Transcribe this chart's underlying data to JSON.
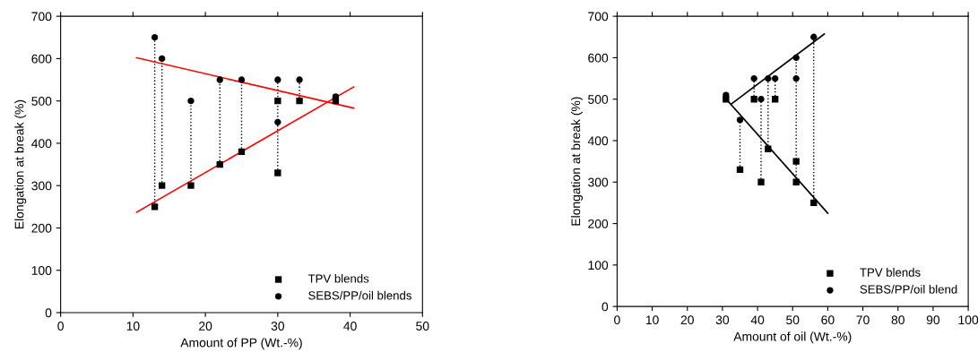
{
  "chart_data": [
    {
      "type": "scatter",
      "xlabel": "Amount of PP (Wt.-%)",
      "ylabel": "Elongation at break (%)",
      "xlim": [
        0,
        50
      ],
      "xticks": [
        0,
        10,
        20,
        30,
        40,
        50
      ],
      "ylim": [
        0,
        700
      ],
      "yticks": [
        0,
        100,
        200,
        300,
        400,
        500,
        600,
        700
      ],
      "grid": false,
      "legend": "bottom right",
      "series": [
        {
          "name": "TPV blends",
          "marker": "square",
          "color": "#000000",
          "x": [
            13,
            14,
            18,
            22,
            25,
            30,
            30,
            33,
            38
          ],
          "values": [
            250,
            300,
            300,
            350,
            380,
            500,
            330,
            500,
            500
          ]
        },
        {
          "name": "SEBS/PP/oil blends",
          "marker": "circle",
          "color": "#000000",
          "x": [
            13,
            14,
            18,
            22,
            25,
            30,
            30,
            33,
            38
          ],
          "values": [
            650,
            600,
            500,
            550,
            550,
            550,
            450,
            550,
            510
          ]
        },
        {
          "type": "line",
          "line_style": "dotted",
          "color": "#000000",
          "x": [
            13,
            13,
            null,
            14,
            14,
            null,
            18,
            18,
            null,
            22,
            22,
            null,
            25,
            25,
            null,
            30,
            30,
            null,
            33,
            33
          ],
          "values": [
            250,
            650,
            null,
            300,
            600,
            null,
            300,
            500,
            null,
            350,
            550,
            null,
            380,
            550,
            null,
            330,
            550,
            null,
            500,
            550
          ]
        },
        {
          "type": "line",
          "line_style": "solid",
          "color": "#ff0000",
          "x": [
            10.5,
            40.5
          ],
          "values": [
            237,
            533
          ]
        },
        {
          "type": "line",
          "line_style": "solid",
          "color": "#ff0000",
          "x": [
            10.5,
            40.5
          ],
          "values": [
            602,
            483
          ]
        }
      ]
    },
    {
      "type": "scatter",
      "xlabel": "Amount of oil (Wt.-%)",
      "ylabel": "Elongation at break (%)",
      "xlim": [
        0,
        100
      ],
      "xticks": [
        0,
        10,
        20,
        30,
        40,
        50,
        60,
        70,
        80,
        90,
        100
      ],
      "ylim": [
        0,
        700
      ],
      "yticks": [
        0,
        100,
        200,
        300,
        400,
        500,
        600,
        700
      ],
      "grid": false,
      "legend": "bottom right",
      "series": [
        {
          "name": "TPV blends",
          "marker": "square",
          "color": "#000000",
          "x": [
            31,
            35,
            39,
            41,
            43,
            45,
            51,
            51,
            56
          ],
          "values": [
            500,
            330,
            500,
            300,
            380,
            500,
            350,
            300,
            250
          ]
        },
        {
          "name": "SEBS/PP/oil blend",
          "marker": "circle",
          "color": "#000000",
          "x": [
            31,
            35,
            39,
            41,
            43,
            45,
            51,
            51,
            56
          ],
          "values": [
            510,
            450,
            550,
            500,
            550,
            550,
            600,
            550,
            650
          ]
        },
        {
          "type": "line",
          "line_style": "dotted",
          "color": "#000000",
          "x": [
            35,
            35,
            null,
            39,
            39,
            null,
            41,
            41,
            null,
            43,
            43,
            null,
            45,
            45,
            null,
            51,
            51,
            null,
            56,
            56
          ],
          "values": [
            330,
            450,
            null,
            500,
            550,
            null,
            300,
            500,
            null,
            380,
            550,
            null,
            500,
            550,
            null,
            300,
            600,
            null,
            250,
            650
          ]
        },
        {
          "type": "line",
          "line_style": "solid",
          "color": "#000000",
          "x": [
            32.6,
            59
          ],
          "values": [
            489,
            657
          ]
        },
        {
          "type": "line",
          "line_style": "solid",
          "color": "#000000",
          "x": [
            31.5,
            60
          ],
          "values": [
            496,
            225
          ]
        }
      ]
    }
  ]
}
